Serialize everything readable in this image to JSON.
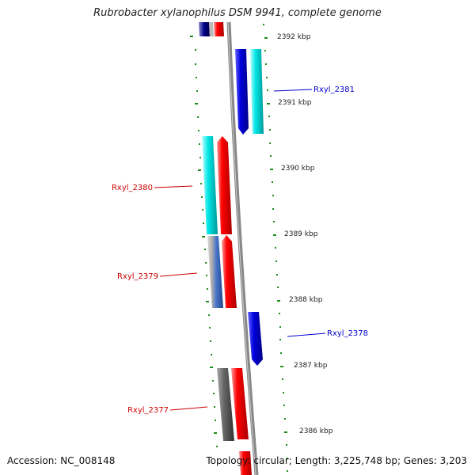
{
  "title": "Rubrobacter xylanophilus DSM 9941, complete genome",
  "accession": "Accession: NC_008148",
  "topology": "Topology: circular; Length: 3,225,748 bp; Genes: 3,203",
  "kbp_labels": [
    "2392 kbp",
    "2391 kbp",
    "2390 kbp",
    "2389 kbp",
    "2388 kbp",
    "2387 kbp",
    "2386 kbp"
  ],
  "gene_labels": {
    "rxyl_2381": "Rxyl_2381",
    "rxyl_2380": "Rxyl_2380",
    "rxyl_2379": "Rxyl_2379",
    "rxyl_2378": "Rxyl_2378",
    "rxyl_2377": "Rxyl_2377"
  },
  "colors": {
    "forward_strand": "#0000dd",
    "reverse_strand": "#ee0000",
    "cyan": "#00e0e0",
    "tick": "#1a8c1a",
    "backbone": "#888888"
  }
}
